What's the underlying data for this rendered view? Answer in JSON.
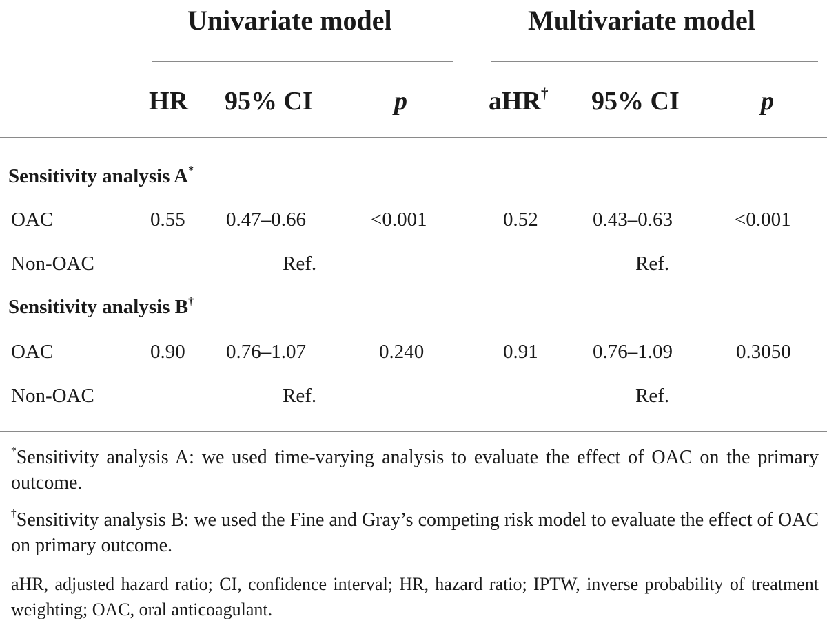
{
  "header": {
    "univariate_title": "Univariate model",
    "multivariate_title": "Multivariate model",
    "col_hr": "HR",
    "col_ci": "95% CI",
    "col_p": "p",
    "col_ahr": "aHR",
    "col_ahr_sup": "†",
    "col_ci2": "95% CI",
    "col_p2": "p"
  },
  "sections": [
    {
      "label": "Sensitivity analysis A",
      "label_sup": "*",
      "rows": [
        {
          "group": "OAC",
          "hr": "0.55",
          "ci": "0.47–0.66",
          "p": "<0.001",
          "ahr": "0.52",
          "ci2": "0.43–0.63",
          "p2": "<0.001"
        },
        {
          "group": "Non-OAC",
          "uni_ref": "Ref.",
          "multi_ref": "Ref."
        }
      ]
    },
    {
      "label": "Sensitivity analysis B",
      "label_sup": "†",
      "rows": [
        {
          "group": "OAC",
          "hr": "0.90",
          "ci": "0.76–1.07",
          "p": "0.240",
          "ahr": "0.91",
          "ci2": "0.76–1.09",
          "p2": "0.3050"
        },
        {
          "group": "Non-OAC",
          "uni_ref": "Ref.",
          "multi_ref": "Ref."
        }
      ]
    }
  ],
  "footnotes": {
    "note_a_marker": "*",
    "note_a": "Sensitivity analysis A: we used time-varying analysis to evaluate the effect of OAC on the primary outcome.",
    "note_b_marker": "†",
    "note_b": "Sensitivity analysis B: we used the Fine and Gray’s competing risk model to evaluate the effect of OAC on primary outcome.",
    "abbreviations": "aHR, adjusted hazard ratio; CI, confidence interval; HR, hazard ratio; IPTW, inverse probability of treatment weighting; OAC, oral anticoagulant."
  }
}
